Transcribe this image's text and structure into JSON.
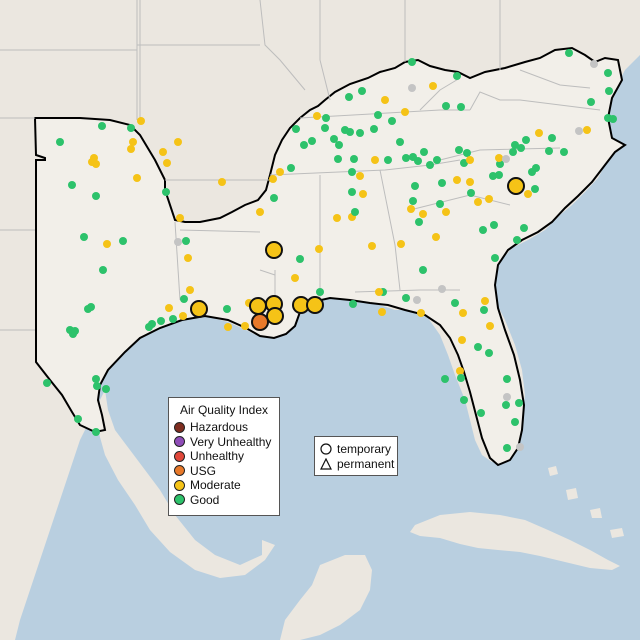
{
  "legend": {
    "title": "Air Quality Index",
    "categories": [
      {
        "label": "Hazardous",
        "color": "#7e2d1f"
      },
      {
        "label": "Very Unhealthy",
        "color": "#8f4db8"
      },
      {
        "label": "Unhealthy",
        "color": "#e0473a"
      },
      {
        "label": "USG",
        "color": "#e8792a"
      },
      {
        "label": "Moderate",
        "color": "#f5c317"
      },
      {
        "label": "Good",
        "color": "#2dc26b"
      }
    ],
    "site_types": [
      {
        "label": "temporary",
        "icon": "circle-outline-icon"
      },
      {
        "label": "permanent",
        "icon": "triangle-outline-icon"
      }
    ]
  },
  "colors": {
    "water": "#b9cfe0",
    "land": "#f2efe9",
    "neighbor_land": "#ebe7e0",
    "border": "#bdbdbd",
    "region_outline": "#000000",
    "no_data": "#c4c4c4"
  },
  "chart_data": {
    "type": "scatter",
    "title": "",
    "marker_sizes": {
      "small": "small dot (monitor)",
      "large": "large circle (temporary site)"
    },
    "sites": [
      {
        "lon": -84.1,
        "lat": 36.9,
        "category": "Good"
      },
      {
        "lon": -83.7,
        "lat": 36.7,
        "category": "Good"
      }
    ]
  }
}
